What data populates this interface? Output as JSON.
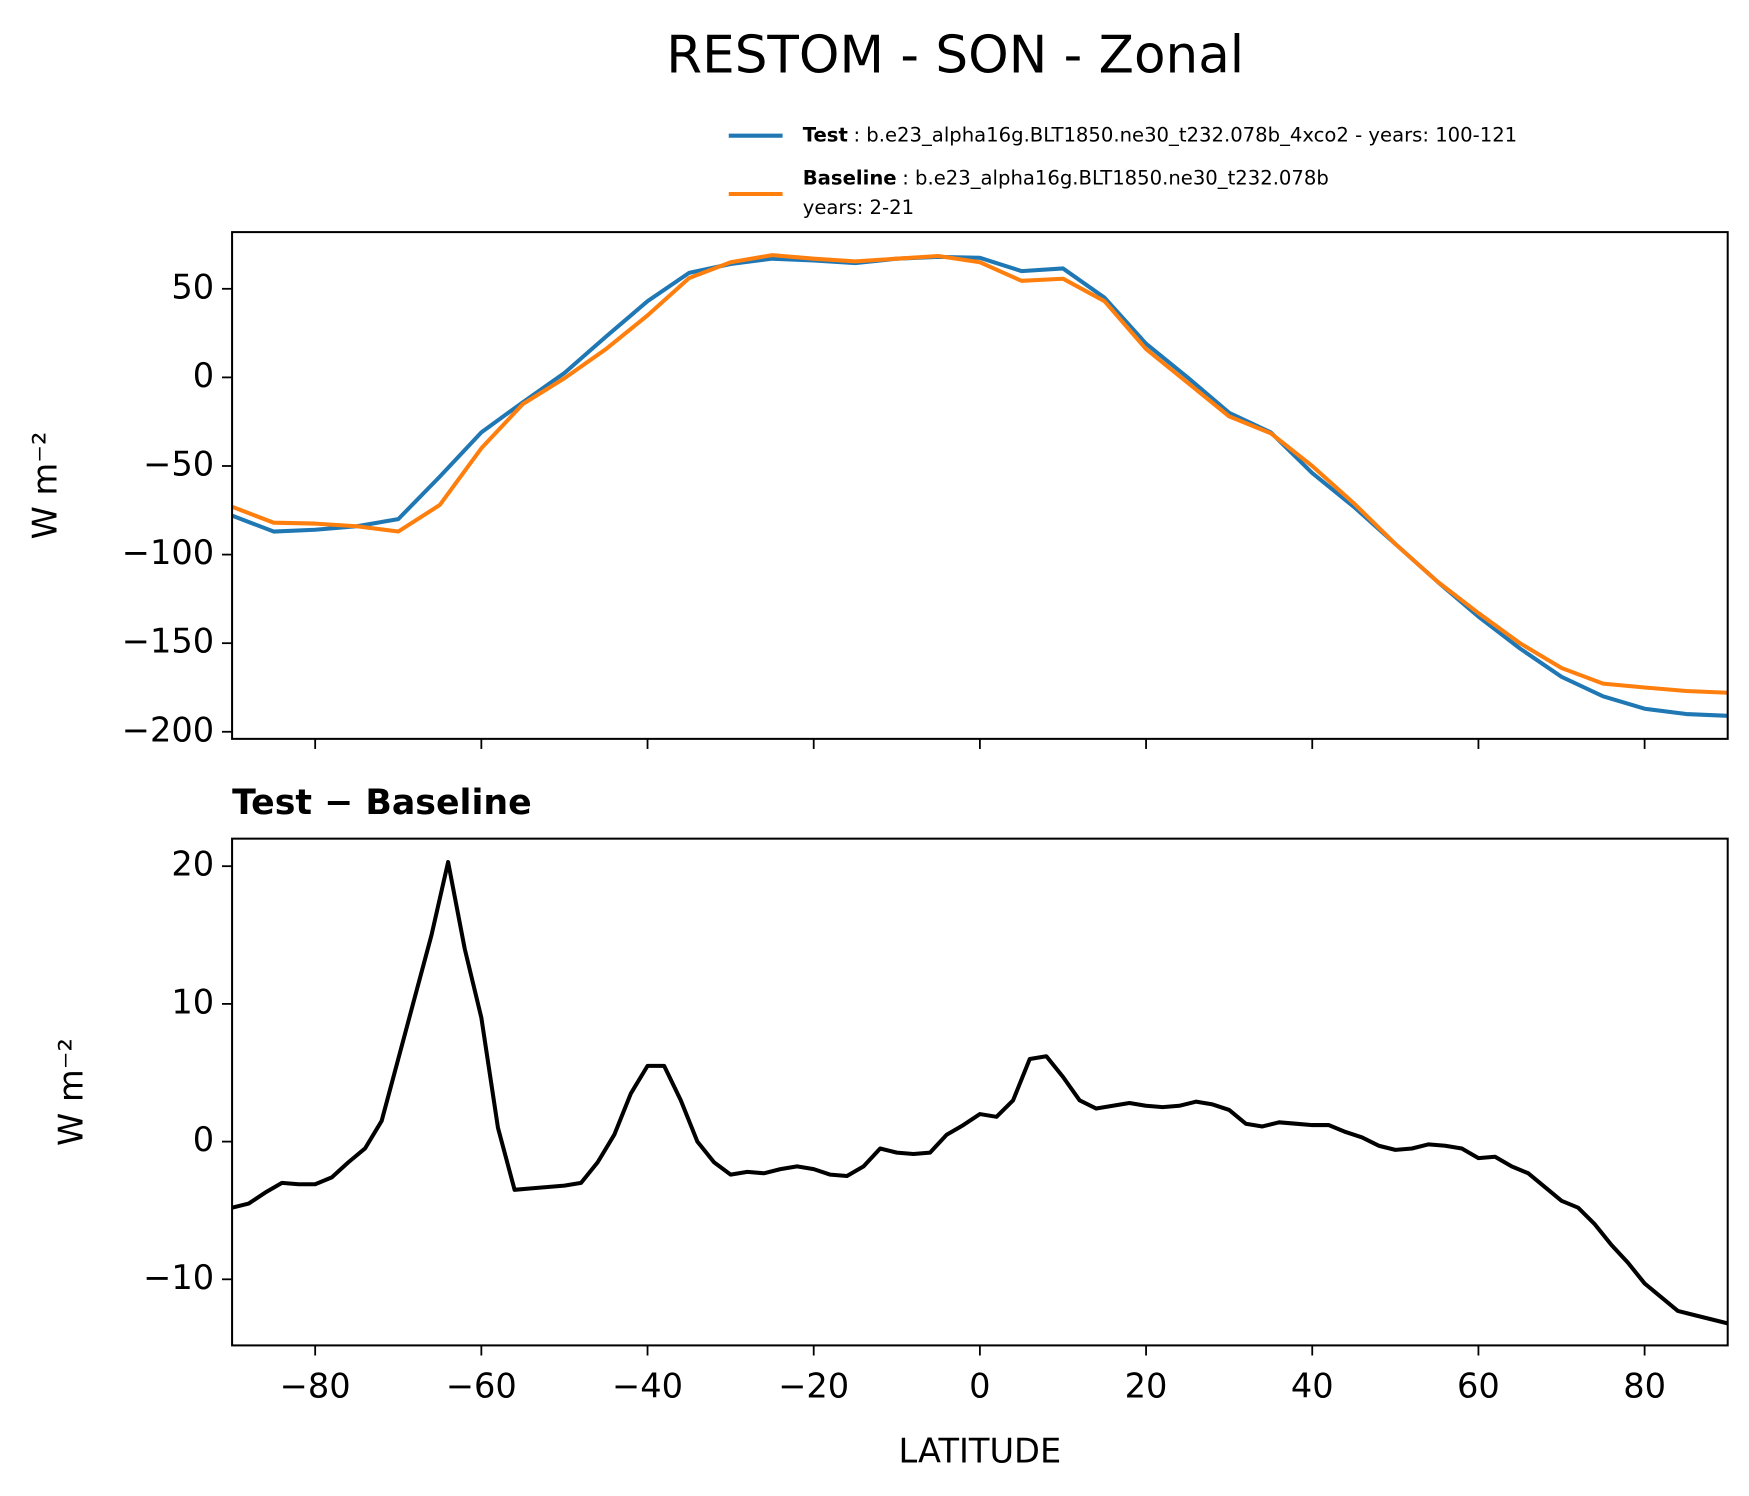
{
  "chart_data": [
    {
      "type": "line",
      "title": "RESTOM - SON - Zonal",
      "ylabel": "W m⁻²",
      "x": [
        -90,
        -85,
        -80,
        -75,
        -70,
        -65,
        -60,
        -55,
        -50,
        -45,
        -40,
        -35,
        -30,
        -25,
        -20,
        -15,
        -10,
        -5,
        0,
        5,
        10,
        15,
        20,
        25,
        30,
        35,
        40,
        45,
        50,
        55,
        60,
        65,
        70,
        75,
        80,
        85,
        90
      ],
      "series": [
        {
          "name": "Test",
          "label": ": b.e23_alpha16g.BLT1850.ne30_t232.078b_4xco2 - years: 100-121",
          "color": "#1f77b4",
          "values": [
            -78,
            -87,
            -86,
            -84,
            -80,
            -56,
            -31,
            -14,
            2.5,
            23,
            43,
            59,
            64,
            67,
            66,
            64.5,
            67,
            68,
            67.5,
            60,
            61.5,
            45,
            19,
            0,
            -20,
            -31,
            -54,
            -73,
            -94,
            -115,
            -135,
            -153,
            -169,
            -180,
            -187,
            -190,
            -191
          ]
        },
        {
          "name": "Baseline",
          "label": ": b.e23_alpha16g.BLT1850.ne30_t232.078b",
          "label2": "years: 2-21",
          "color": "#ff7f0e",
          "values": [
            -73,
            -82,
            -82.5,
            -84,
            -87,
            -72,
            -40,
            -15,
            -0.5,
            16,
            35,
            56,
            65,
            69,
            67,
            65.5,
            67,
            68.5,
            65,
            54.5,
            55.7,
            43,
            16,
            -3,
            -22,
            -31.5,
            -50,
            -71,
            -94,
            -115,
            -133,
            -150,
            -164,
            -172.8,
            -175,
            -177,
            -178
          ]
        }
      ],
      "xlim": [
        -90,
        90
      ],
      "ylim": [
        -204,
        82
      ],
      "yticks": [
        50,
        0,
        {
          "value": -50,
          "label": "−50"
        },
        {
          "value": -100,
          "label": "−100"
        },
        {
          "value": -150,
          "label": "−150"
        },
        {
          "value": -200,
          "label": "−200"
        }
      ]
    },
    {
      "type": "line",
      "title": "Test − Baseline",
      "xlabel": "LATITUDE",
      "ylabel": "W m⁻²",
      "x": [
        -90,
        -88,
        -86,
        -84,
        -82,
        -80,
        -78,
        -76,
        -74,
        -72,
        -70,
        -68,
        -66,
        -64,
        -62,
        -60,
        -58,
        -56,
        -54,
        -52,
        -50,
        -48,
        -46,
        -44,
        -42,
        -40,
        -38,
        -36,
        -34,
        -32,
        -30,
        -28,
        -26,
        -24,
        -22,
        -20,
        -18,
        -16,
        -14,
        -12,
        -10,
        -8,
        -6,
        -4,
        -2,
        0,
        2,
        4,
        6,
        8,
        10,
        12,
        14,
        16,
        18,
        20,
        22,
        24,
        26,
        28,
        30,
        32,
        34,
        36,
        38,
        40,
        42,
        44,
        46,
        48,
        50,
        52,
        54,
        56,
        58,
        60,
        62,
        64,
        66,
        68,
        70,
        72,
        74,
        76,
        78,
        80,
        82,
        84,
        86,
        88,
        90
      ],
      "series": [
        {
          "color": "#000000",
          "values": [
            -4.8,
            -4.5,
            -3.7,
            -3.0,
            -3.1,
            -3.1,
            -2.6,
            -1.5,
            -0.5,
            1.5,
            6,
            10.5,
            15,
            20.3,
            14,
            9,
            1,
            -3.5,
            -3.4,
            -3.3,
            -3.2,
            -3.0,
            -1.5,
            0.5,
            3.5,
            5.5,
            5.5,
            3,
            0,
            -1.5,
            -2.4,
            -2.2,
            -2.3,
            -2.0,
            -1.8,
            -2.0,
            -2.4,
            -2.5,
            -1.8,
            -0.5,
            -0.8,
            -0.9,
            -0.8,
            0.5,
            1.2,
            2.0,
            1.8,
            3.0,
            6,
            6.2,
            4.7,
            3,
            2.4,
            2.6,
            2.8,
            2.6,
            2.5,
            2.6,
            2.9,
            2.7,
            2.3,
            1.3,
            1.1,
            1.4,
            1.3,
            1.2,
            1.2,
            0.7,
            0.3,
            -0.3,
            -0.6,
            -0.5,
            -0.2,
            -0.3,
            -0.5,
            -1.2,
            -1.1,
            -1.8,
            -2.3,
            -3.3,
            -4.3,
            -4.8,
            -6,
            -7.5,
            -8.8,
            -10.3,
            -11.3,
            -12.3,
            -12.6,
            -12.9,
            -13.2
          ]
        }
      ],
      "xlim": [
        -90,
        90
      ],
      "ylim": [
        -14.8,
        22
      ],
      "xticks": [
        {
          "value": -80,
          "label": "−80"
        },
        {
          "value": -60,
          "label": "−60"
        },
        {
          "value": -40,
          "label": "−40"
        },
        {
          "value": -20,
          "label": "−20"
        },
        0,
        20,
        40,
        60,
        80
      ],
      "yticks": [
        20,
        10,
        0,
        {
          "value": -10,
          "label": "−10"
        }
      ]
    }
  ]
}
